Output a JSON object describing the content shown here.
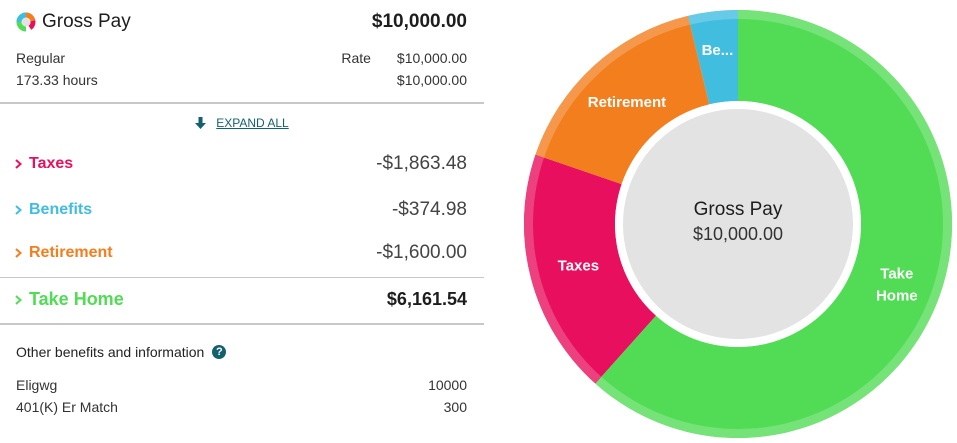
{
  "header": {
    "title": "Gross Pay",
    "amount": "$10,000.00"
  },
  "earnings": {
    "type_label": "Regular",
    "rate_label": "Rate",
    "rate_value": "$10,000.00",
    "hours_label": "173.33 hours",
    "hours_amount": "$10,000.00"
  },
  "expand_all": {
    "label": "EXPAND ALL",
    "icon": "arrow-down-icon"
  },
  "categories": [
    {
      "label": "Taxes",
      "amount": "-$1,863.48",
      "color": "#e8105e"
    },
    {
      "label": "Benefits",
      "amount": "-$374.98",
      "color": "#41bde0"
    },
    {
      "label": "Retirement",
      "amount": "-$1,600.00",
      "color": "#f27e1e"
    },
    {
      "label": "Take Home",
      "amount": "$6,161.54",
      "color": "#52dc55"
    }
  ],
  "other": {
    "title": "Other benefits and information",
    "help_icon": "?",
    "items": [
      {
        "label": "Eligwg",
        "value": "10000"
      },
      {
        "label": "401(K) Er Match",
        "value": "300"
      }
    ]
  },
  "chart_data": {
    "type": "pie",
    "title": "Gross Pay",
    "center_label": "Gross Pay",
    "center_value": "$10,000.00",
    "categories": [
      "Take Home",
      "Taxes",
      "Retirement",
      "Benefits"
    ],
    "display_labels": [
      "Take Home",
      "Taxes",
      "Retirement",
      "Be..."
    ],
    "values": [
      6161.54,
      1863.48,
      1600.0,
      374.98
    ],
    "colors": [
      "#52dc55",
      "#e8105e",
      "#f27e1e",
      "#41bde0"
    ],
    "donut": true
  }
}
